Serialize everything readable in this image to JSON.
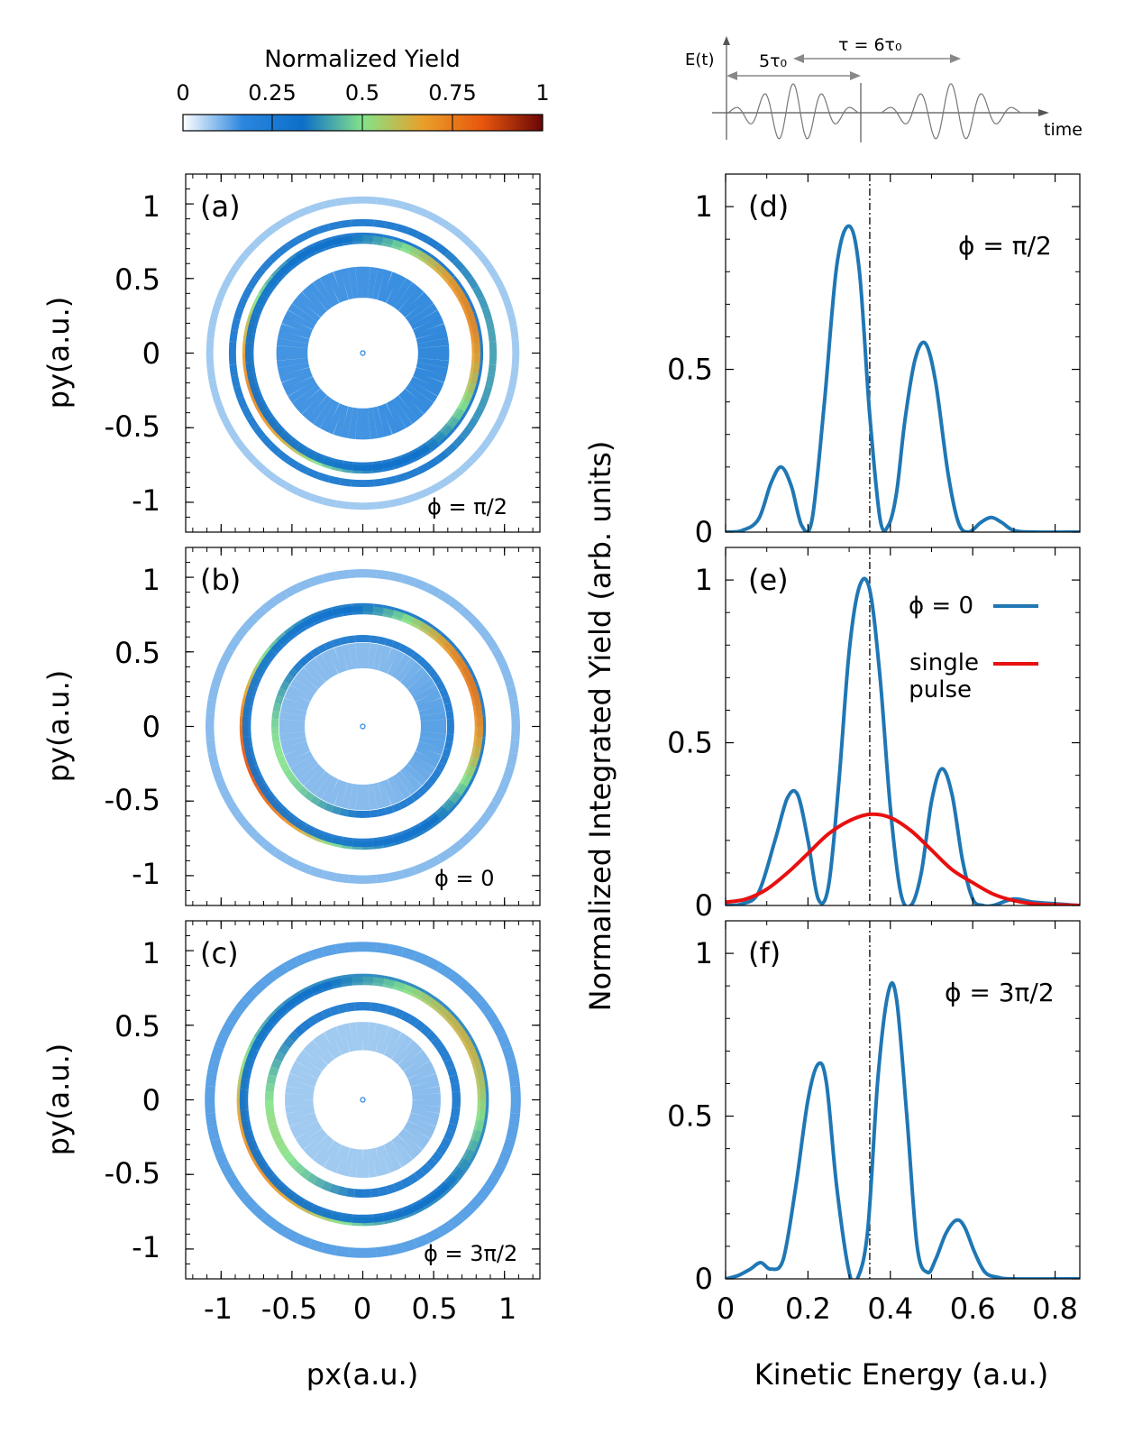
{
  "colorbar": {
    "title": "Normalized Yield",
    "ticks": [
      "0",
      "0.25",
      "0.5",
      "0.75",
      "1"
    ],
    "tick_values": [
      0,
      0.25,
      0.5,
      0.75,
      1
    ],
    "colors": [
      "#ffffff",
      "#2a86de",
      "#0d6fc9",
      "#84e38a",
      "#e9a02a",
      "#e8560c",
      "#6a0606"
    ]
  },
  "pulse_diagram": {
    "ylabel": "E(t)",
    "xlabel": "time",
    "tau0_label": "5τ₀",
    "tau_label": "τ = 6τ₀",
    "line_color": "#777777"
  },
  "chart_data": [
    {
      "id": "a",
      "type": "heatmap",
      "panel_label": "(a)",
      "annotation": "ϕ = π/2",
      "xlabel": "",
      "ylabel": "py(a.u.)",
      "xlim": [
        -1.25,
        1.25
      ],
      "ylim": [
        -1.2,
        1.2
      ],
      "xticks": [
        "-1",
        "-0.5",
        "0",
        "0.5",
        "1"
      ],
      "yticks": [
        "1",
        "0.5",
        "0",
        "-0.5",
        "-1"
      ],
      "rings": [
        {
          "r": 0.5,
          "w": 0.22,
          "base": 0.16,
          "amp": 0.06,
          "dir": 0
        },
        {
          "r": 0.82,
          "w": 0.06,
          "base": 0.32,
          "amp": 0.4,
          "dir": 200
        },
        {
          "r": 0.8,
          "w": 0.06,
          "base": 0.32,
          "amp": 0.4,
          "dir": 20
        },
        {
          "r": 0.92,
          "w": 0.05,
          "base": 0.3,
          "amp": 0.1,
          "dir": 0
        },
        {
          "r": 1.08,
          "w": 0.05,
          "base": 0.08,
          "amp": 0.0,
          "dir": 0
        }
      ]
    },
    {
      "id": "b",
      "type": "heatmap",
      "panel_label": "(b)",
      "annotation": "ϕ = 0",
      "xlabel": "",
      "ylabel": "py(a.u.)",
      "xlim": [
        -1.25,
        1.25
      ],
      "ylim": [
        -1.2,
        1.2
      ],
      "xticks": [
        "-1",
        "-0.5",
        "0",
        "0.5",
        "1"
      ],
      "yticks": [
        "1",
        "0.5",
        "0",
        "-0.5",
        "-1"
      ],
      "rings": [
        {
          "r": 0.5,
          "w": 0.18,
          "base": 0.1,
          "amp": 0.04,
          "dir": 0
        },
        {
          "r": 0.62,
          "w": 0.05,
          "base": 0.3,
          "amp": 0.2,
          "dir": 200
        },
        {
          "r": 0.84,
          "w": 0.06,
          "base": 0.34,
          "amp": 0.5,
          "dir": 200
        },
        {
          "r": 0.82,
          "w": 0.06,
          "base": 0.3,
          "amp": 0.45,
          "dir": 20
        },
        {
          "r": 1.08,
          "w": 0.06,
          "base": 0.1,
          "amp": 0.0,
          "dir": 0
        }
      ]
    },
    {
      "id": "c",
      "type": "heatmap",
      "panel_label": "(c)",
      "annotation": "ϕ = 3π/2",
      "xlabel": "px(a.u.)",
      "ylabel": "py(a.u.)",
      "xlim": [
        -1.25,
        1.25
      ],
      "ylim": [
        -1.2,
        1.2
      ],
      "xticks": [
        "-1",
        "-0.5",
        "0",
        "0.5",
        "1"
      ],
      "yticks": [
        "1",
        "0.5",
        "0",
        "-0.5",
        "-1"
      ],
      "rings": [
        {
          "r": 0.45,
          "w": 0.2,
          "base": 0.08,
          "amp": 0.02,
          "dir": 0
        },
        {
          "r": 0.66,
          "w": 0.06,
          "base": 0.3,
          "amp": 0.22,
          "dir": 200
        },
        {
          "r": 0.86,
          "w": 0.06,
          "base": 0.36,
          "amp": 0.35,
          "dir": 210
        },
        {
          "r": 0.84,
          "w": 0.06,
          "base": 0.32,
          "amp": 0.3,
          "dir": 30
        },
        {
          "r": 1.08,
          "w": 0.07,
          "base": 0.14,
          "amp": 0.0,
          "dir": 0
        }
      ]
    },
    {
      "id": "d",
      "type": "line",
      "panel_label": "(d)",
      "annotation": "ϕ = π/2",
      "xlabel": "",
      "ylabel": "Normalized Integrated Yield (arb. units)",
      "xlim": [
        0,
        0.86
      ],
      "ylim": [
        0,
        1.1
      ],
      "xticks": [
        "0",
        "0.2",
        "0.4",
        "0.6",
        "0.8"
      ],
      "xtick_values": [
        0,
        0.2,
        0.4,
        0.6,
        0.8
      ],
      "yticks": [
        "0",
        "0.5",
        "1"
      ],
      "ytick_values": [
        0,
        0.5,
        1
      ],
      "vline": 0.35,
      "series": [
        {
          "name": "ϕ = π/2",
          "color": "#1f77b4",
          "x": [
            0,
            0.04,
            0.08,
            0.11,
            0.135,
            0.16,
            0.185,
            0.21,
            0.24,
            0.27,
            0.3,
            0.325,
            0.35,
            0.375,
            0.395,
            0.415,
            0.435,
            0.46,
            0.485,
            0.51,
            0.54,
            0.565,
            0.59,
            0.62,
            0.645,
            0.67,
            0.7,
            0.75,
            0.86
          ],
          "values": [
            0,
            0.005,
            0.04,
            0.15,
            0.2,
            0.14,
            0.02,
            0.04,
            0.4,
            0.82,
            0.94,
            0.8,
            0.36,
            0.04,
            0.02,
            0.12,
            0.34,
            0.53,
            0.58,
            0.46,
            0.18,
            0.03,
            0.0,
            0.03,
            0.045,
            0.03,
            0.005,
            0,
            0
          ]
        }
      ]
    },
    {
      "id": "e",
      "type": "line",
      "panel_label": "(e)",
      "annotation": "",
      "xlabel": "",
      "ylabel": "",
      "xlim": [
        0,
        0.86
      ],
      "ylim": [
        0,
        1.1
      ],
      "xticks": [
        "0",
        "0.2",
        "0.4",
        "0.6",
        "0.8"
      ],
      "xtick_values": [
        0,
        0.2,
        0.4,
        0.6,
        0.8
      ],
      "yticks": [
        "0",
        "0.5",
        "1"
      ],
      "ytick_values": [
        0,
        0.5,
        1
      ],
      "vline": 0.35,
      "legend": [
        {
          "label": "ϕ = 0",
          "color": "#1f77b4"
        },
        {
          "label": "single pulse",
          "line1": "single",
          "line2": "pulse",
          "color": "#e81010"
        }
      ],
      "series": [
        {
          "name": "ϕ = 0",
          "color": "#1f77b4",
          "x": [
            0,
            0.04,
            0.08,
            0.12,
            0.15,
            0.175,
            0.2,
            0.225,
            0.25,
            0.275,
            0.3,
            0.325,
            0.35,
            0.375,
            0.4,
            0.425,
            0.45,
            0.475,
            0.5,
            0.525,
            0.55,
            0.575,
            0.6,
            0.625,
            0.65,
            0.7,
            0.75,
            0.86
          ],
          "values": [
            0,
            0.005,
            0.04,
            0.2,
            0.33,
            0.34,
            0.2,
            0.02,
            0.06,
            0.38,
            0.78,
            0.98,
            0.97,
            0.7,
            0.3,
            0.04,
            0.0,
            0.1,
            0.32,
            0.42,
            0.34,
            0.14,
            0.02,
            0.0,
            0.0,
            0.02,
            0.01,
            0
          ]
        },
        {
          "name": "single pulse",
          "color": "#e81010",
          "x": [
            0,
            0.05,
            0.1,
            0.15,
            0.2,
            0.25,
            0.3,
            0.35,
            0.4,
            0.45,
            0.5,
            0.55,
            0.6,
            0.65,
            0.7,
            0.75,
            0.8,
            0.86
          ],
          "values": [
            0.01,
            0.02,
            0.05,
            0.1,
            0.16,
            0.22,
            0.26,
            0.28,
            0.27,
            0.23,
            0.17,
            0.11,
            0.07,
            0.035,
            0.015,
            0.005,
            0.002,
            0
          ]
        }
      ]
    },
    {
      "id": "f",
      "type": "line",
      "panel_label": "(f)",
      "annotation": "ϕ = 3π/2",
      "xlabel": "Kinetic Energy (a.u.)",
      "ylabel": "",
      "xlim": [
        0,
        0.86
      ],
      "ylim": [
        0,
        1.1
      ],
      "xticks": [
        "0",
        "0.2",
        "0.4",
        "0.6",
        "0.8"
      ],
      "xtick_values": [
        0,
        0.2,
        0.4,
        0.6,
        0.8
      ],
      "yticks": [
        "0",
        "0.5",
        "1"
      ],
      "ytick_values": [
        0,
        0.5,
        1
      ],
      "vline": 0.35,
      "series": [
        {
          "name": "ϕ = 3π/2",
          "color": "#1f77b4",
          "x": [
            0,
            0.03,
            0.06,
            0.085,
            0.11,
            0.14,
            0.17,
            0.2,
            0.225,
            0.245,
            0.27,
            0.3,
            0.32,
            0.345,
            0.37,
            0.395,
            0.415,
            0.44,
            0.465,
            0.49,
            0.51,
            0.535,
            0.56,
            0.58,
            0.605,
            0.63,
            0.66,
            0.7,
            0.86
          ],
          "values": [
            0,
            0.01,
            0.03,
            0.05,
            0.03,
            0.06,
            0.28,
            0.55,
            0.66,
            0.6,
            0.28,
            0.02,
            0.0,
            0.15,
            0.62,
            0.88,
            0.86,
            0.5,
            0.1,
            0.02,
            0.06,
            0.14,
            0.18,
            0.16,
            0.08,
            0.02,
            0.005,
            0,
            0
          ]
        }
      ]
    }
  ]
}
